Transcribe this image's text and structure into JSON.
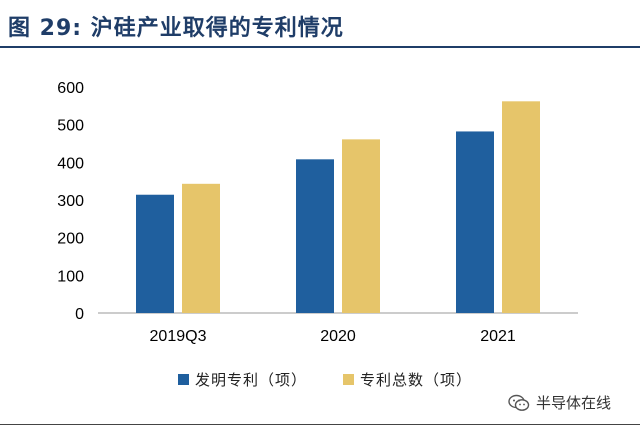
{
  "figure_title": "图  29:  沪硅产业取得的专利情况",
  "chart_data": {
    "type": "bar",
    "categories": [
      "2019Q3",
      "2020",
      "2021"
    ],
    "series": [
      {
        "name": "发明专利（项）",
        "color": "#1f5f9e",
        "values": [
          314,
          408,
          482
        ]
      },
      {
        "name": "专利总数（项）",
        "color": "#e6c56a",
        "values": [
          343,
          461,
          562
        ]
      }
    ],
    "ylim": [
      0,
      600
    ],
    "yticks": [
      0,
      100,
      200,
      300,
      400,
      500,
      600
    ],
    "title": "",
    "xlabel": "",
    "ylabel": ""
  },
  "watermark": {
    "text": "半导体在线",
    "icon": "wechat-icon"
  }
}
